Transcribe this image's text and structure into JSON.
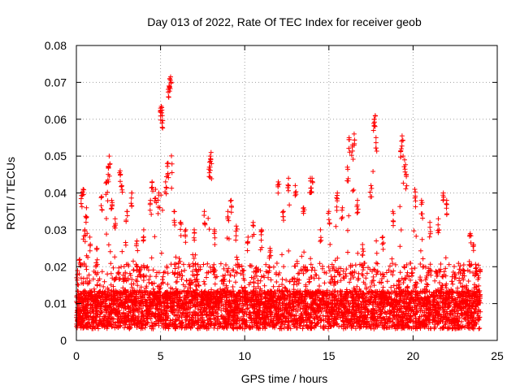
{
  "chart_data": {
    "type": "scatter",
    "title": "Day 013 of 2022, Rate Of TEC Index for receiver geob",
    "xlabel": "GPS time / hours",
    "ylabel": "ROTI / TECUs",
    "xlim": [
      0,
      25
    ],
    "ylim": [
      0,
      0.08
    ],
    "x_ticks": [
      0,
      5,
      10,
      15,
      20,
      25
    ],
    "x_tick_labels": [
      "0",
      "5",
      "10",
      "15",
      "20",
      "25"
    ],
    "y_ticks": [
      0,
      0.01,
      0.02,
      0.03,
      0.04,
      0.05,
      0.06,
      0.07,
      0.08
    ],
    "y_tick_labels": [
      "0",
      "0.01",
      "0.02",
      "0.03",
      "0.04",
      "0.05",
      "0.06",
      "0.07",
      "0.08"
    ],
    "grid": true,
    "marker": "+",
    "marker_color": "#ff0000",
    "x_range_of_points": [
      0,
      24
    ],
    "approx_baseline": 0.009,
    "series": [
      {
        "values": [
          [
            0.2,
            0.022
          ],
          [
            0.3,
            0.04
          ],
          [
            0.4,
            0.041
          ],
          [
            0.5,
            0.03
          ],
          [
            0.6,
            0.036
          ],
          [
            0.8,
            0.028
          ],
          [
            1.2,
            0.025
          ],
          [
            1.5,
            0.039
          ],
          [
            1.8,
            0.043
          ],
          [
            1.9,
            0.047
          ],
          [
            1.95,
            0.05
          ],
          [
            2.1,
            0.038
          ],
          [
            2.3,
            0.033
          ],
          [
            2.6,
            0.046
          ],
          [
            2.7,
            0.042
          ],
          [
            3.0,
            0.035
          ],
          [
            3.3,
            0.04
          ],
          [
            3.6,
            0.027
          ],
          [
            4.0,
            0.03
          ],
          [
            4.4,
            0.038
          ],
          [
            4.5,
            0.043
          ],
          [
            4.7,
            0.041
          ],
          [
            4.9,
            0.04
          ],
          [
            5.0,
            0.063
          ],
          [
            5.05,
            0.0635
          ],
          [
            5.1,
            0.061
          ],
          [
            5.3,
            0.043
          ],
          [
            5.4,
            0.048
          ],
          [
            5.5,
            0.069
          ],
          [
            5.55,
            0.071
          ],
          [
            5.6,
            0.0715
          ],
          [
            5.8,
            0.035
          ],
          [
            6.2,
            0.032
          ],
          [
            6.5,
            0.03
          ],
          [
            7.0,
            0.03
          ],
          [
            7.6,
            0.035
          ],
          [
            7.9,
            0.047
          ],
          [
            7.95,
            0.05
          ],
          [
            8.0,
            0.051
          ],
          [
            8.2,
            0.03
          ],
          [
            9.0,
            0.035
          ],
          [
            9.2,
            0.038
          ],
          [
            9.5,
            0.031
          ],
          [
            10.2,
            0.028
          ],
          [
            10.5,
            0.032
          ],
          [
            11.0,
            0.03
          ],
          [
            11.5,
            0.025
          ],
          [
            12.0,
            0.043
          ],
          [
            12.3,
            0.035
          ],
          [
            12.6,
            0.044
          ],
          [
            13.0,
            0.042
          ],
          [
            13.5,
            0.036
          ],
          [
            13.9,
            0.044
          ],
          [
            14.0,
            0.044
          ],
          [
            14.5,
            0.03
          ],
          [
            15.0,
            0.035
          ],
          [
            15.5,
            0.04
          ],
          [
            15.8,
            0.036
          ],
          [
            16.1,
            0.047
          ],
          [
            16.2,
            0.055
          ],
          [
            16.4,
            0.053
          ],
          [
            16.5,
            0.056
          ],
          [
            16.7,
            0.038
          ],
          [
            17.0,
            0.026
          ],
          [
            17.5,
            0.042
          ],
          [
            17.7,
            0.06
          ],
          [
            17.75,
            0.061
          ],
          [
            17.8,
            0.055
          ],
          [
            18.2,
            0.028
          ],
          [
            18.8,
            0.035
          ],
          [
            19.3,
            0.052
          ],
          [
            19.35,
            0.0555
          ],
          [
            19.5,
            0.049
          ],
          [
            19.6,
            0.045
          ],
          [
            20.1,
            0.041
          ],
          [
            20.5,
            0.038
          ],
          [
            21.0,
            0.032
          ],
          [
            21.5,
            0.033
          ],
          [
            21.8,
            0.04
          ],
          [
            22.0,
            0.038
          ],
          [
            22.5,
            0.018
          ],
          [
            23.0,
            0.019
          ],
          [
            23.4,
            0.029
          ],
          [
            23.6,
            0.026
          ],
          [
            23.9,
            0.017
          ]
        ]
      }
    ]
  }
}
